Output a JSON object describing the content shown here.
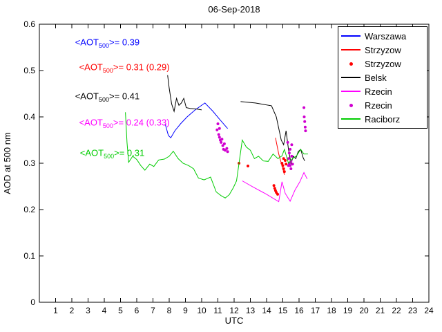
{
  "chart_data": {
    "type": "line",
    "title": "06-Sep-2018",
    "xlabel": "UTC",
    "ylabel": "AOD at 500 nm",
    "xlim": [
      0,
      24
    ],
    "ylim": [
      0,
      0.6
    ],
    "x_ticks": [
      1,
      2,
      3,
      4,
      5,
      6,
      7,
      8,
      9,
      10,
      11,
      12,
      13,
      14,
      15,
      16,
      17,
      18,
      19,
      20,
      21,
      22,
      23,
      24
    ],
    "y_ticks": [
      0,
      0.1,
      0.2,
      0.3,
      0.4,
      0.5,
      0.6
    ],
    "grid": false,
    "legend_position": "top-right",
    "series": [
      {
        "name": "Warszawa",
        "type": "line",
        "color": "#0000ff",
        "points": [
          [
            7.75,
            0.385
          ],
          [
            7.95,
            0.36
          ],
          [
            8.1,
            0.355
          ],
          [
            8.35,
            0.37
          ],
          [
            8.7,
            0.385
          ],
          [
            9.1,
            0.4
          ],
          [
            9.6,
            0.415
          ],
          [
            10.2,
            0.43
          ],
          [
            10.7,
            0.412
          ],
          [
            11.1,
            0.395
          ],
          [
            11.6,
            0.375
          ]
        ]
      },
      {
        "name": "Strzyzow",
        "type": "line",
        "color": "#ff0000",
        "points": [
          [
            14.55,
            0.355
          ],
          [
            14.75,
            0.32
          ],
          [
            14.95,
            0.295
          ],
          [
            15.1,
            0.275
          ]
        ]
      },
      {
        "name": "Strzyzow",
        "type": "scatter",
        "color": "#ff0000",
        "points": [
          [
            12.3,
            0.3
          ],
          [
            12.85,
            0.294
          ],
          [
            14.45,
            0.252
          ],
          [
            14.5,
            0.246
          ],
          [
            14.55,
            0.241
          ],
          [
            14.6,
            0.237
          ],
          [
            14.68,
            0.233
          ],
          [
            14.95,
            0.3
          ],
          [
            15.0,
            0.295
          ],
          [
            15.05,
            0.31
          ],
          [
            15.05,
            0.288
          ],
          [
            15.1,
            0.282
          ],
          [
            15.15,
            0.306
          ],
          [
            15.2,
            0.298
          ]
        ]
      },
      {
        "name": "Belsk",
        "type": "line",
        "color": "#000000",
        "points": [
          [
            7.9,
            0.49
          ],
          [
            8.0,
            0.462
          ],
          [
            8.15,
            0.428
          ],
          [
            8.3,
            0.412
          ],
          [
            8.45,
            0.44
          ],
          [
            8.6,
            0.425
          ],
          [
            8.75,
            0.43
          ],
          [
            8.9,
            0.44
          ],
          [
            9.05,
            0.42
          ],
          [
            9.3,
            0.418
          ],
          [
            9.7,
            0.417
          ],
          [
            10.0,
            0.415
          ],
          null,
          [
            12.4,
            0.433
          ],
          [
            13.3,
            0.43
          ],
          [
            14.3,
            0.424
          ],
          [
            14.6,
            0.4
          ],
          [
            14.9,
            0.35
          ],
          [
            15.05,
            0.34
          ],
          [
            15.2,
            0.37
          ],
          [
            15.35,
            0.33
          ],
          [
            15.5,
            0.3
          ],
          [
            15.65,
            0.315
          ],
          [
            15.8,
            0.31
          ],
          [
            15.95,
            0.325
          ],
          [
            16.1,
            0.33
          ],
          [
            16.25,
            0.312
          ],
          [
            16.35,
            0.305
          ]
        ]
      },
      {
        "name": "Rzecin",
        "type": "line",
        "color": "#ff00ff",
        "points": [
          [
            12.5,
            0.262
          ],
          [
            13.2,
            0.248
          ],
          [
            14.0,
            0.233
          ],
          [
            14.75,
            0.217
          ],
          [
            14.95,
            0.26
          ],
          [
            15.15,
            0.235
          ],
          [
            15.45,
            0.218
          ],
          [
            15.75,
            0.242
          ],
          [
            16.05,
            0.26
          ],
          [
            16.3,
            0.28
          ],
          [
            16.5,
            0.266
          ]
        ]
      },
      {
        "name": "Rzecin",
        "type": "scatter",
        "color": "#d000d0",
        "points": [
          [
            10.95,
            0.372
          ],
          [
            11.0,
            0.385
          ],
          [
            11.05,
            0.362
          ],
          [
            11.1,
            0.356
          ],
          [
            11.1,
            0.375
          ],
          [
            11.15,
            0.35
          ],
          [
            11.2,
            0.345
          ],
          [
            11.25,
            0.352
          ],
          [
            11.3,
            0.338
          ],
          [
            11.35,
            0.33
          ],
          [
            11.4,
            0.342
          ],
          [
            11.45,
            0.328
          ],
          [
            11.55,
            0.332
          ],
          [
            11.6,
            0.325
          ],
          [
            15.3,
            0.345
          ],
          [
            15.35,
            0.31
          ],
          [
            15.35,
            0.295
          ],
          [
            15.4,
            0.3
          ],
          [
            15.4,
            0.322
          ],
          [
            15.45,
            0.33
          ],
          [
            15.45,
            0.295
          ],
          [
            15.5,
            0.305
          ],
          [
            15.5,
            0.288
          ],
          [
            15.55,
            0.315
          ],
          [
            15.55,
            0.34
          ],
          [
            15.6,
            0.298
          ],
          [
            16.3,
            0.42
          ],
          [
            16.32,
            0.4
          ],
          [
            16.35,
            0.39
          ],
          [
            16.38,
            0.378
          ],
          [
            16.4,
            0.37
          ]
        ]
      },
      {
        "name": "Raciborz",
        "type": "line",
        "color": "#00cc00",
        "points": [
          [
            5.3,
            0.41
          ],
          [
            5.4,
            0.345
          ],
          [
            5.5,
            0.302
          ],
          [
            5.75,
            0.315
          ],
          [
            6.0,
            0.308
          ],
          [
            6.25,
            0.295
          ],
          [
            6.5,
            0.285
          ],
          [
            6.8,
            0.298
          ],
          [
            7.05,
            0.293
          ],
          [
            7.35,
            0.307
          ],
          [
            7.7,
            0.309
          ],
          [
            8.0,
            0.315
          ],
          [
            8.25,
            0.326
          ],
          [
            8.55,
            0.31
          ],
          [
            8.85,
            0.3
          ],
          [
            9.2,
            0.295
          ],
          [
            9.5,
            0.288
          ],
          [
            9.8,
            0.268
          ],
          [
            10.15,
            0.264
          ],
          [
            10.55,
            0.27
          ],
          [
            10.9,
            0.238
          ],
          [
            11.2,
            0.23
          ],
          [
            11.45,
            0.225
          ],
          [
            11.7,
            0.232
          ],
          [
            11.95,
            0.247
          ],
          [
            12.15,
            0.262
          ],
          [
            12.5,
            0.35
          ],
          [
            12.75,
            0.335
          ],
          [
            13.0,
            0.328
          ],
          [
            13.25,
            0.31
          ],
          [
            13.5,
            0.315
          ],
          [
            13.8,
            0.305
          ],
          [
            14.1,
            0.304
          ],
          [
            14.4,
            0.32
          ],
          [
            14.7,
            0.31
          ],
          [
            14.95,
            0.316
          ],
          [
            15.1,
            0.33
          ],
          [
            15.35,
            0.3
          ],
          [
            15.6,
            0.31
          ],
          [
            15.85,
            0.316
          ],
          [
            16.1,
            0.33
          ],
          [
            16.3,
            0.32
          ],
          [
            16.55,
            0.32
          ]
        ]
      }
    ],
    "annotations": [
      {
        "color": "#0000ff",
        "prefix": "<AOT",
        "sub": "500",
        "suffix": ">= 0.39",
        "x": 2.2,
        "y": 0.557
      },
      {
        "color": "#ff0000",
        "prefix": "<AOT",
        "sub": "500",
        "suffix": ">= 0.31 (0.29)",
        "x": 2.45,
        "y": 0.503
      },
      {
        "color": "#000000",
        "prefix": "<AOT",
        "sub": "500",
        "suffix": ">= 0.41",
        "x": 2.2,
        "y": 0.44
      },
      {
        "color": "#ff00ff",
        "prefix": "<AOT",
        "sub": "500",
        "suffix": ">= 0.24 (0.33)",
        "x": 2.45,
        "y": 0.383
      },
      {
        "color": "#00cc00",
        "prefix": "<AOT",
        "sub": "500",
        "suffix": ">= 0.31",
        "x": 2.5,
        "y": 0.318
      }
    ]
  },
  "legend": {
    "items": [
      {
        "label": "Warszawa",
        "marker": "line",
        "color": "#0000ff"
      },
      {
        "label": "Strzyzow",
        "marker": "line",
        "color": "#ff0000"
      },
      {
        "label": "Strzyzow",
        "marker": "dot",
        "color": "#ff0000"
      },
      {
        "label": "Belsk",
        "marker": "line",
        "color": "#000000"
      },
      {
        "label": "Rzecin",
        "marker": "line",
        "color": "#ff00ff"
      },
      {
        "label": "Rzecin",
        "marker": "dot",
        "color": "#d000d0"
      },
      {
        "label": "Raciborz",
        "marker": "line",
        "color": "#00cc00"
      }
    ]
  }
}
